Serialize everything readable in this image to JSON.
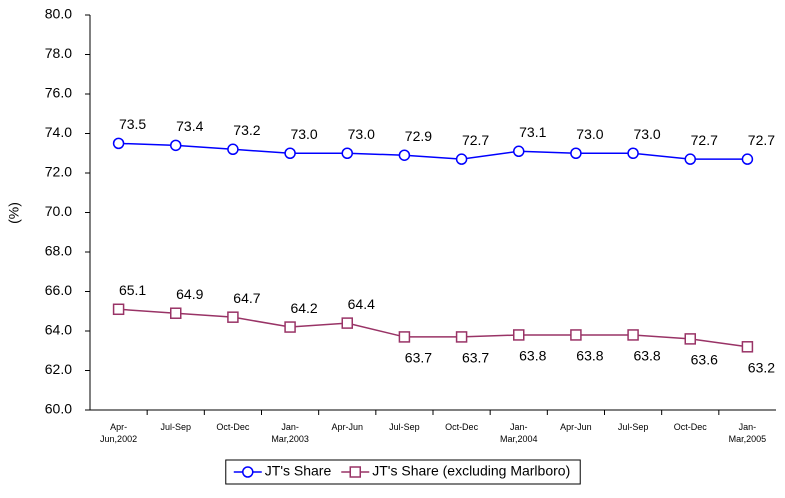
{
  "chart_data": {
    "type": "line",
    "y_label": "(%)",
    "categories": [
      "Apr-\nJun,2002",
      "Jul-Sep",
      "Oct-Dec",
      "Jan-\nMar,2003",
      "Apr-Jun",
      "Jul-Sep",
      "Oct-Dec",
      "Jan-\nMar,2004",
      "Apr-Jun",
      "Jul-Sep",
      "Oct-Dec",
      "Jan-\nMar,2005"
    ],
    "series": [
      {
        "name": "JT's Share",
        "color": "#0000ff",
        "marker": "circle",
        "values": [
          73.5,
          73.4,
          73.2,
          73.0,
          73.0,
          72.9,
          72.7,
          73.1,
          73.0,
          73.0,
          72.7,
          72.7
        ],
        "value_labels": [
          "73.5",
          "73.4",
          "73.2",
          "73.0",
          "73.0",
          "72.9",
          "72.7",
          "73.1",
          "73.0",
          "73.0",
          "72.7",
          "72.7"
        ]
      },
      {
        "name": "JT's Share (excluding Marlboro)",
        "color": "#993366",
        "marker": "square",
        "values": [
          65.1,
          64.9,
          64.7,
          64.2,
          64.4,
          63.7,
          63.7,
          63.8,
          63.8,
          63.8,
          63.6,
          63.2
        ],
        "value_labels": [
          "65.1",
          "64.9",
          "64.7",
          "64.2",
          "64.4",
          "63.7",
          "63.7",
          "63.8",
          "63.8",
          "63.8",
          "63.6",
          "63.2"
        ]
      }
    ],
    "ylim": [
      60,
      80
    ],
    "yticks": [
      {
        "value": 60,
        "label": "60.0"
      },
      {
        "value": 62,
        "label": "62.0"
      },
      {
        "value": 64,
        "label": "64.0"
      },
      {
        "value": 66,
        "label": "66.0"
      },
      {
        "value": 68,
        "label": "68.0"
      },
      {
        "value": 70,
        "label": "70.0"
      },
      {
        "value": 72,
        "label": "72.0"
      },
      {
        "value": 74,
        "label": "74.0"
      },
      {
        "value": 76,
        "label": "76.0"
      },
      {
        "value": 78,
        "label": "78.0"
      },
      {
        "value": 80,
        "label": "80.0"
      }
    ],
    "grid": false,
    "legend": "bottom"
  }
}
